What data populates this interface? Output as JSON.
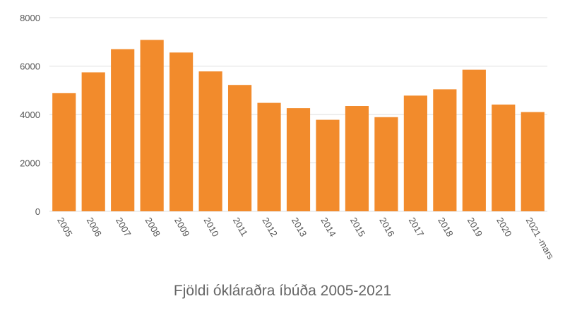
{
  "chart_data": {
    "type": "bar",
    "title": "Fjöldi ókláraðra íbúða 2005-2021",
    "xlabel": "",
    "ylabel": "",
    "ylim": [
      0,
      8000
    ],
    "yticks": [
      0,
      2000,
      4000,
      6000,
      8000
    ],
    "grid": true,
    "legend": "none",
    "categories": [
      "2005",
      "2006",
      "2007",
      "2008",
      "2009",
      "2010",
      "2011",
      "2012",
      "2013",
      "2014",
      "2015",
      "2016",
      "2017",
      "2018",
      "2019",
      "2020",
      "2021 -mars"
    ],
    "values": [
      4880,
      5740,
      6700,
      7080,
      6560,
      5780,
      5220,
      4480,
      4260,
      3780,
      4350,
      3890,
      4780,
      5040,
      5850,
      4410,
      4100
    ],
    "bar_color": "#f28b2c",
    "grid_color": "#dddddd",
    "text_color": "#555555"
  }
}
